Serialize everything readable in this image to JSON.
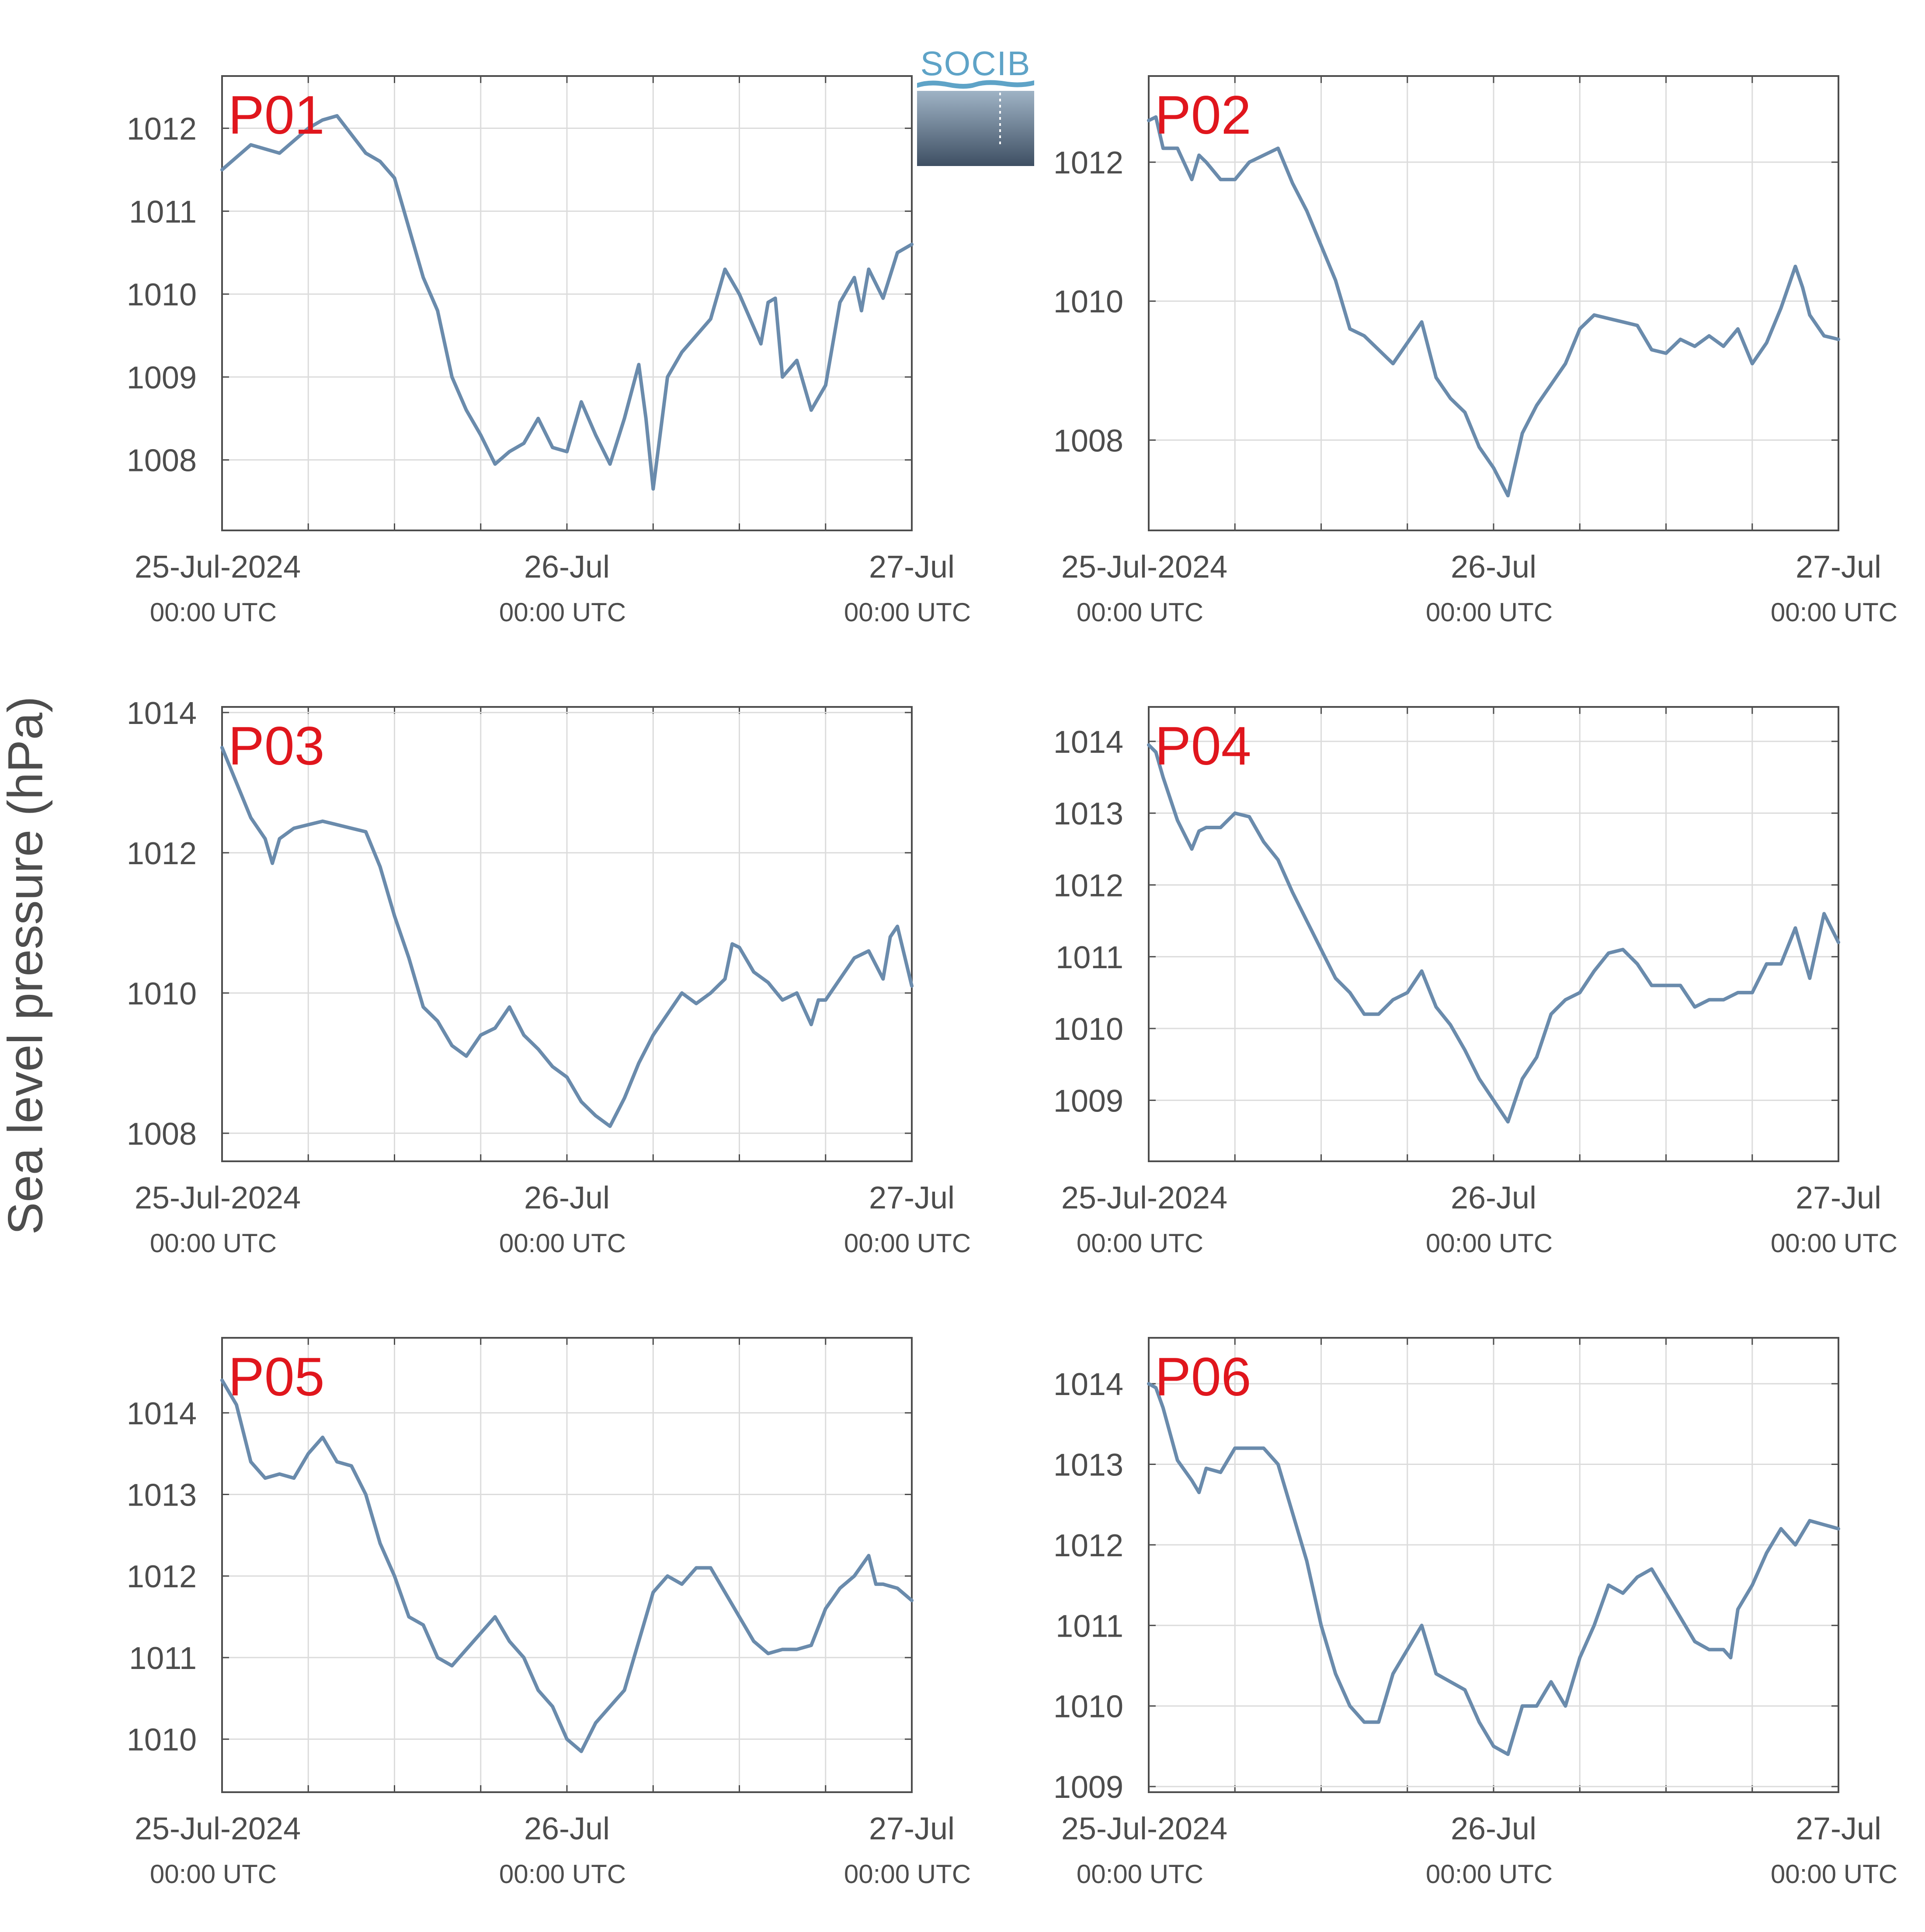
{
  "figure": {
    "ylabel": "Sea level pressure (hPa)",
    "logo_text": "SOCIB",
    "colors": {
      "line": "#6a8bac",
      "panel_label": "#e0161d",
      "axis": "#4d4d4d",
      "grid": "#dcdcdc"
    }
  },
  "chart_data": [
    {
      "type": "line",
      "panel_label": "P01",
      "x_ticks": [
        {
          "label": "25-Jul-2024",
          "sublabel": "00:00 UTC"
        },
        {
          "label": "26-Jul",
          "sublabel": "00:00 UTC"
        },
        {
          "label": "27-Jul",
          "sublabel": "00:00 UTC"
        }
      ],
      "xlim": [
        0,
        48
      ],
      "ylim": [
        1007.15,
        1012.63
      ],
      "y_ticks": [
        1008,
        1009,
        1010,
        1011,
        1012
      ],
      "grid": true,
      "series": [
        {
          "x": [
            0,
            2,
            4,
            6,
            7,
            8,
            10,
            11,
            12,
            14,
            15,
            16,
            17,
            18,
            19,
            20,
            21,
            22,
            23,
            24,
            25,
            26,
            27,
            28,
            29,
            29.5,
            30,
            31,
            32,
            33,
            34,
            35,
            36,
            37,
            37.5,
            38,
            38.5,
            39,
            40,
            41,
            42,
            43,
            44,
            44.5,
            45,
            46,
            47,
            48
          ],
          "y": [
            1011.5,
            1011.8,
            1011.7,
            1012.0,
            1012.1,
            1012.15,
            1011.7,
            1011.6,
            1011.4,
            1010.2,
            1009.8,
            1009.0,
            1008.6,
            1008.3,
            1007.95,
            1008.1,
            1008.2,
            1008.5,
            1008.15,
            1008.1,
            1008.7,
            1008.3,
            1007.95,
            1008.5,
            1009.15,
            1008.5,
            1007.65,
            1009.0,
            1009.3,
            1009.5,
            1009.7,
            1010.3,
            1010.0,
            1009.6,
            1009.4,
            1009.9,
            1009.95,
            1009.0,
            1009.2,
            1008.6,
            1008.9,
            1009.9,
            1010.2,
            1009.8,
            1010.3,
            1009.95,
            1010.5,
            1010.6
          ]
        }
      ]
    },
    {
      "type": "line",
      "panel_label": "P02",
      "x_ticks": [
        {
          "label": "25-Jul-2024",
          "sublabel": "00:00 UTC"
        },
        {
          "label": "26-Jul",
          "sublabel": "00:00 UTC"
        },
        {
          "label": "27-Jul",
          "sublabel": "00:00 UTC"
        }
      ],
      "xlim": [
        0,
        48
      ],
      "ylim": [
        1006.7,
        1013.24
      ],
      "y_ticks": [
        1008,
        1010,
        1012
      ],
      "grid": true,
      "series": [
        {
          "x": [
            0,
            0.5,
            1,
            2,
            3,
            3.5,
            4,
            5,
            6,
            7,
            8,
            9,
            10,
            11,
            12,
            13,
            14,
            15,
            16,
            17,
            18,
            19,
            20,
            21,
            22,
            23,
            24,
            25,
            26,
            27,
            28,
            29,
            30,
            31,
            32,
            33,
            34,
            35,
            36,
            37,
            38,
            39,
            40,
            41,
            42,
            43,
            44,
            45,
            45.5,
            46,
            47,
            48
          ],
          "y": [
            1012.6,
            1012.65,
            1012.2,
            1012.2,
            1011.75,
            1012.1,
            1012.0,
            1011.75,
            1011.75,
            1012.0,
            1012.1,
            1012.2,
            1011.7,
            1011.3,
            1010.8,
            1010.3,
            1009.6,
            1009.5,
            1009.3,
            1009.1,
            1009.4,
            1009.7,
            1008.9,
            1008.6,
            1008.4,
            1007.9,
            1007.6,
            1007.2,
            1008.1,
            1008.5,
            1008.8,
            1009.1,
            1009.6,
            1009.8,
            1009.75,
            1009.7,
            1009.65,
            1009.3,
            1009.25,
            1009.45,
            1009.35,
            1009.5,
            1009.35,
            1009.6,
            1009.1,
            1009.4,
            1009.9,
            1010.5,
            1010.2,
            1009.8,
            1009.5,
            1009.45
          ]
        }
      ]
    },
    {
      "type": "line",
      "panel_label": "P03",
      "x_ticks": [
        {
          "label": "25-Jul-2024",
          "sublabel": "00:00 UTC"
        },
        {
          "label": "26-Jul",
          "sublabel": "00:00 UTC"
        },
        {
          "label": "27-Jul",
          "sublabel": "00:00 UTC"
        }
      ],
      "xlim": [
        0,
        48
      ],
      "ylim": [
        1007.6,
        1014.08
      ],
      "y_ticks": [
        1008,
        1010,
        1012,
        1014
      ],
      "grid": true,
      "series": [
        {
          "x": [
            0,
            1,
            2,
            3,
            3.5,
            4,
            5,
            6,
            7,
            8,
            9,
            10,
            11,
            12,
            13,
            14,
            15,
            16,
            17,
            18,
            19,
            20,
            21,
            22,
            23,
            24,
            25,
            26,
            27,
            28,
            29,
            30,
            31,
            32,
            33,
            34,
            35,
            35.5,
            36,
            37,
            38,
            39,
            40,
            41,
            41.5,
            42,
            43,
            44,
            45,
            46,
            46.5,
            47,
            48
          ],
          "y": [
            1013.5,
            1013.0,
            1012.5,
            1012.2,
            1011.85,
            1012.2,
            1012.35,
            1012.4,
            1012.45,
            1012.4,
            1012.35,
            1012.3,
            1011.8,
            1011.1,
            1010.5,
            1009.8,
            1009.6,
            1009.25,
            1009.1,
            1009.4,
            1009.5,
            1009.8,
            1009.4,
            1009.2,
            1008.95,
            1008.8,
            1008.45,
            1008.25,
            1008.1,
            1008.5,
            1009.0,
            1009.4,
            1009.7,
            1010.0,
            1009.85,
            1010.0,
            1010.2,
            1010.7,
            1010.65,
            1010.3,
            1010.15,
            1009.9,
            1010.0,
            1009.55,
            1009.9,
            1009.9,
            1010.2,
            1010.5,
            1010.6,
            1010.2,
            1010.8,
            1010.95,
            1010.1
          ]
        }
      ]
    },
    {
      "type": "line",
      "panel_label": "P04",
      "x_ticks": [
        {
          "label": "25-Jul-2024",
          "sublabel": "00:00 UTC"
        },
        {
          "label": "26-Jul",
          "sublabel": "00:00 UTC"
        },
        {
          "label": "27-Jul",
          "sublabel": "00:00 UTC"
        }
      ],
      "xlim": [
        0,
        48
      ],
      "ylim": [
        1008.15,
        1014.48
      ],
      "y_ticks": [
        1009,
        1010,
        1011,
        1012,
        1013,
        1014
      ],
      "grid": true,
      "series": [
        {
          "x": [
            0,
            0.5,
            1,
            2,
            3,
            3.5,
            4,
            5,
            6,
            7,
            8,
            9,
            10,
            11,
            12,
            13,
            14,
            15,
            16,
            17,
            18,
            19,
            20,
            21,
            22,
            23,
            24,
            25,
            26,
            27,
            28,
            29,
            30,
            31,
            32,
            33,
            34,
            35,
            36,
            37,
            38,
            39,
            40,
            41,
            42,
            43,
            44,
            45,
            46,
            47,
            48
          ],
          "y": [
            1013.95,
            1013.85,
            1013.5,
            1012.9,
            1012.5,
            1012.75,
            1012.8,
            1012.8,
            1013.0,
            1012.95,
            1012.6,
            1012.35,
            1011.9,
            1011.5,
            1011.1,
            1010.7,
            1010.5,
            1010.2,
            1010.2,
            1010.4,
            1010.5,
            1010.8,
            1010.3,
            1010.05,
            1009.7,
            1009.3,
            1009.0,
            1008.7,
            1009.3,
            1009.6,
            1010.2,
            1010.4,
            1010.5,
            1010.8,
            1011.05,
            1011.1,
            1010.9,
            1010.6,
            1010.6,
            1010.6,
            1010.3,
            1010.4,
            1010.4,
            1010.5,
            1010.5,
            1010.9,
            1010.9,
            1011.4,
            1010.7,
            1011.6,
            1011.2
          ]
        }
      ]
    },
    {
      "type": "line",
      "panel_label": "P05",
      "x_ticks": [
        {
          "label": "25-Jul-2024",
          "sublabel": "00:00 UTC"
        },
        {
          "label": "26-Jul",
          "sublabel": "00:00 UTC"
        },
        {
          "label": "27-Jul",
          "sublabel": "00:00 UTC"
        }
      ],
      "xlim": [
        0,
        48
      ],
      "ylim": [
        1009.35,
        1014.92
      ],
      "y_ticks": [
        1010,
        1011,
        1012,
        1013,
        1014
      ],
      "grid": true,
      "series": [
        {
          "x": [
            0,
            1,
            2,
            3,
            4,
            5,
            6,
            7,
            8,
            9,
            10,
            11,
            12,
            13,
            14,
            15,
            16,
            17,
            18,
            19,
            20,
            21,
            22,
            23,
            24,
            25,
            26,
            27,
            28,
            29,
            30,
            31,
            32,
            33,
            34,
            35,
            36,
            37,
            38,
            39,
            40,
            41,
            42,
            43,
            44,
            45,
            45.5,
            46,
            47,
            48
          ],
          "y": [
            1014.4,
            1014.1,
            1013.4,
            1013.2,
            1013.25,
            1013.2,
            1013.5,
            1013.7,
            1013.4,
            1013.35,
            1013.0,
            1012.4,
            1012.0,
            1011.5,
            1011.4,
            1011.0,
            1010.9,
            1011.1,
            1011.3,
            1011.5,
            1011.2,
            1011.0,
            1010.6,
            1010.4,
            1010.0,
            1009.85,
            1010.2,
            1010.4,
            1010.6,
            1011.2,
            1011.8,
            1012.0,
            1011.9,
            1012.1,
            1012.1,
            1011.8,
            1011.5,
            1011.2,
            1011.05,
            1011.1,
            1011.1,
            1011.15,
            1011.6,
            1011.85,
            1012.0,
            1012.25,
            1011.9,
            1011.9,
            1011.85,
            1011.7
          ]
        }
      ]
    },
    {
      "type": "line",
      "panel_label": "P06",
      "x_ticks": [
        {
          "label": "25-Jul-2024",
          "sublabel": "00:00 UTC"
        },
        {
          "label": "26-Jul",
          "sublabel": "00:00 UTC"
        },
        {
          "label": "27-Jul",
          "sublabel": "00:00 UTC"
        }
      ],
      "xlim": [
        0,
        48
      ],
      "ylim": [
        1008.93,
        1014.57
      ],
      "y_ticks": [
        1009,
        1010,
        1011,
        1012,
        1013,
        1014
      ],
      "grid": true,
      "series": [
        {
          "x": [
            0,
            0.5,
            1,
            2,
            3,
            3.5,
            4,
            5,
            6,
            7,
            8,
            9,
            10,
            11,
            12,
            13,
            14,
            15,
            16,
            17,
            18,
            19,
            20,
            21,
            22,
            23,
            24,
            25,
            26,
            27,
            28,
            29,
            30,
            31,
            32,
            33,
            34,
            35,
            36,
            37,
            38,
            39,
            40,
            40.5,
            41,
            42,
            43,
            44,
            45,
            46,
            47,
            48
          ],
          "y": [
            1014.0,
            1013.95,
            1013.7,
            1013.05,
            1012.8,
            1012.65,
            1012.95,
            1012.9,
            1013.2,
            1013.2,
            1013.2,
            1013.0,
            1012.4,
            1011.8,
            1011.0,
            1010.4,
            1010.0,
            1009.8,
            1009.8,
            1010.4,
            1010.7,
            1011.0,
            1010.4,
            1010.3,
            1010.2,
            1009.8,
            1009.5,
            1009.4,
            1010.0,
            1010.0,
            1010.3,
            1010.0,
            1010.6,
            1011.0,
            1011.5,
            1011.4,
            1011.6,
            1011.7,
            1011.4,
            1011.1,
            1010.8,
            1010.7,
            1010.7,
            1010.6,
            1011.2,
            1011.5,
            1011.9,
            1012.2,
            1012.0,
            1012.3,
            1012.25,
            1012.2
          ]
        }
      ]
    }
  ]
}
